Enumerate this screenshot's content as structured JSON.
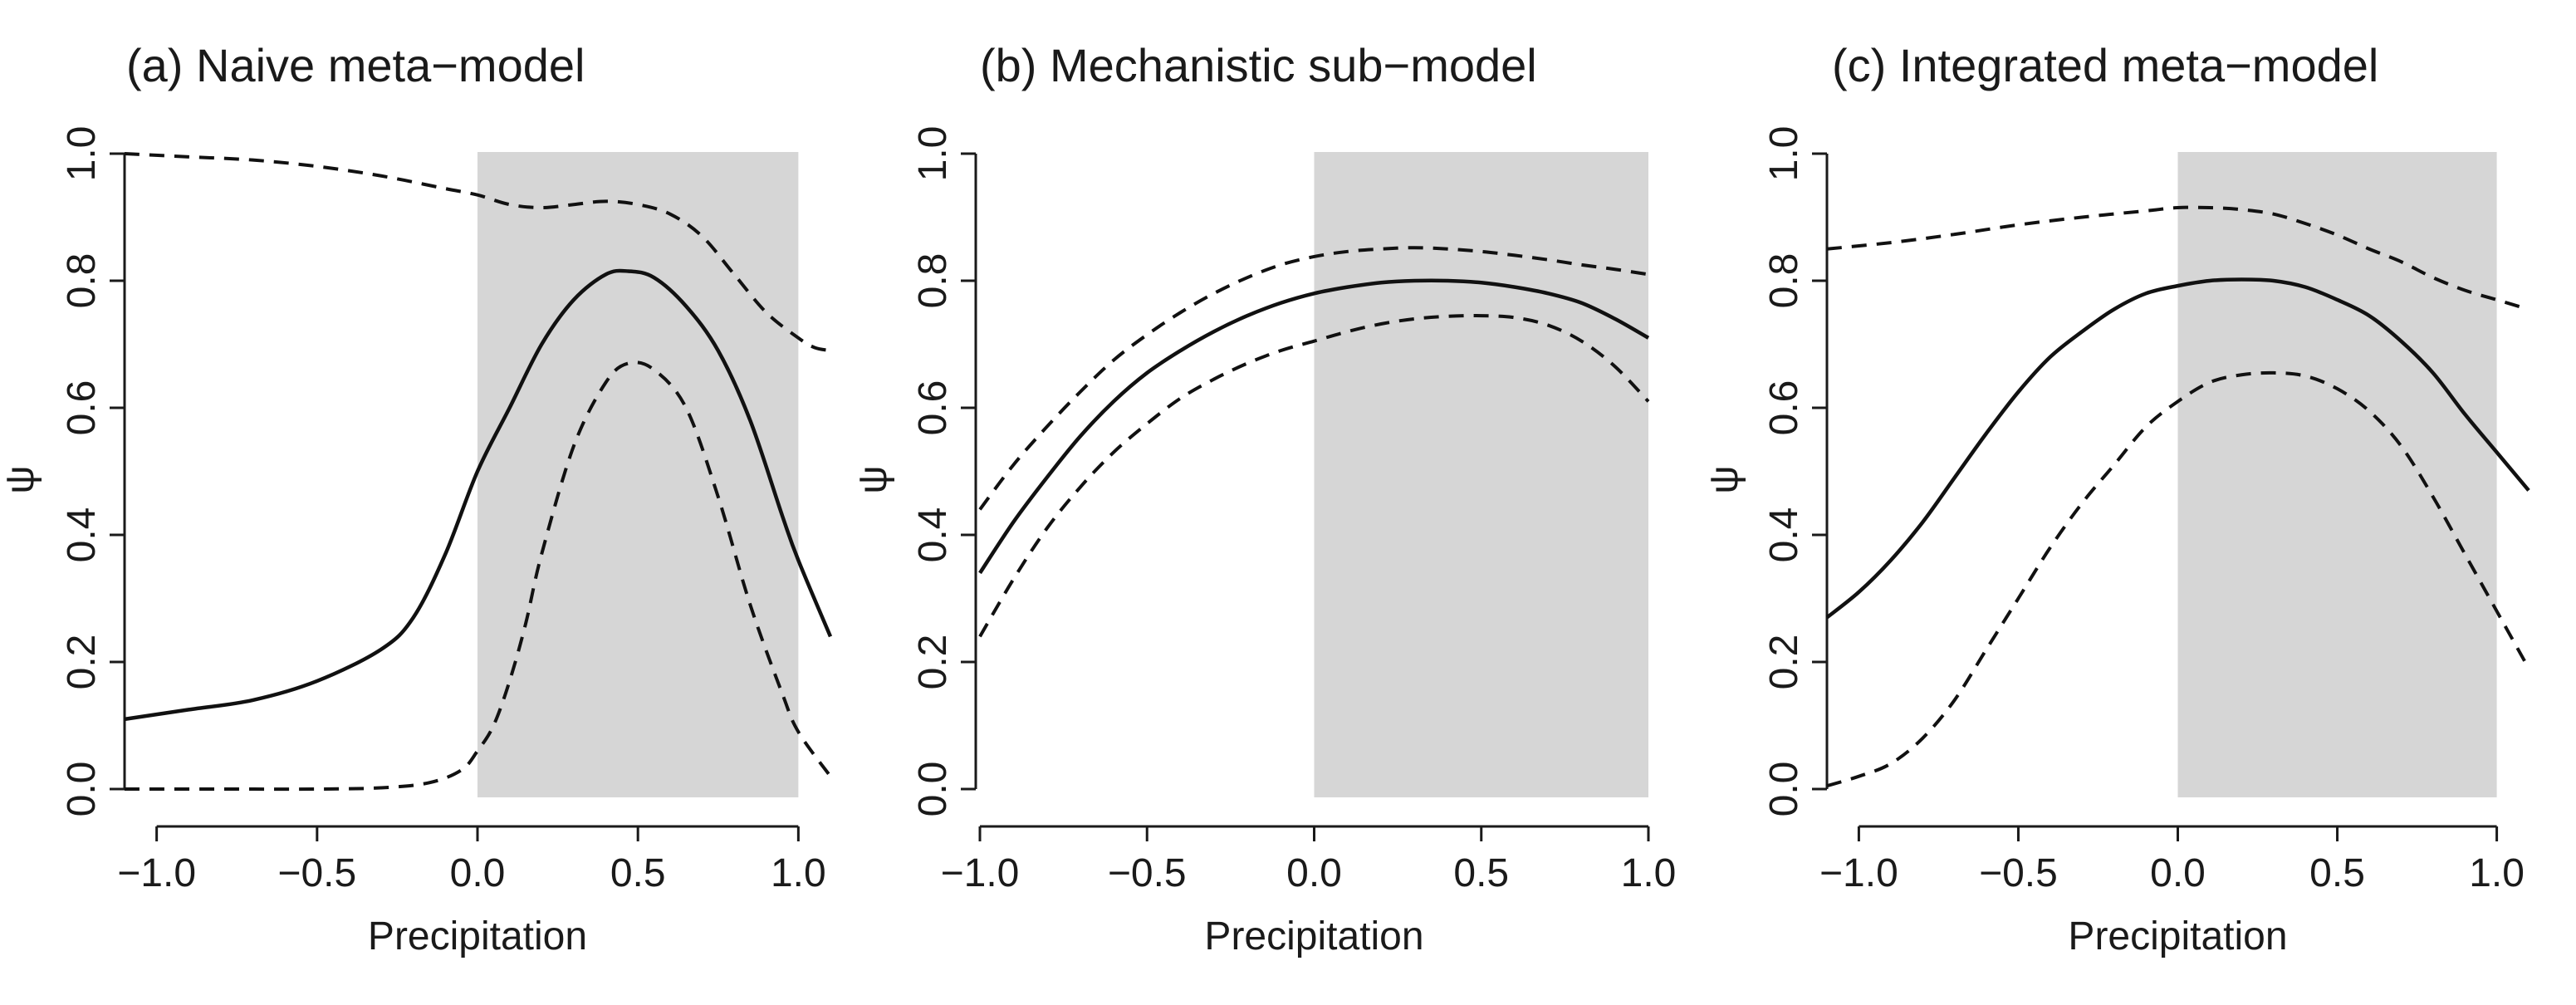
{
  "colors": {
    "shade": "#d6d6d6",
    "curve": "#111111",
    "axis": "#1a1a1a",
    "background": "#ffffff"
  },
  "chart_data": [
    {
      "type": "line",
      "title": "(a) Naive meta−model",
      "xlabel": "Precipitation",
      "ylabel": "ψ",
      "xlim": [
        -1.1,
        1.1
      ],
      "ylim": [
        0,
        1
      ],
      "xticks": [
        -1.0,
        -0.5,
        0.0,
        0.5,
        1.0
      ],
      "xtick_labels": [
        "−1.0",
        "−0.5",
        "0.0",
        "0.5",
        "1.0"
      ],
      "yticks": [
        0.0,
        0.2,
        0.4,
        0.6,
        0.8,
        1.0
      ],
      "ytick_labels": [
        "0.0",
        "0.2",
        "0.4",
        "0.6",
        "0.8",
        "1.0"
      ],
      "shaded_region": {
        "x": [
          0.0,
          1.0
        ],
        "y": [
          0.0,
          1.0
        ]
      },
      "grid": false,
      "series": [
        {
          "style": "solid",
          "x": [
            -1.1,
            -0.9,
            -0.7,
            -0.5,
            -0.3,
            -0.2,
            -0.1,
            0.0,
            0.1,
            0.2,
            0.3,
            0.4,
            0.47,
            0.55,
            0.65,
            0.75,
            0.85,
            0.95,
            1.0,
            1.1
          ],
          "y": [
            0.11,
            0.125,
            0.14,
            0.17,
            0.22,
            0.27,
            0.37,
            0.5,
            0.6,
            0.7,
            0.77,
            0.81,
            0.815,
            0.805,
            0.76,
            0.69,
            0.58,
            0.43,
            0.36,
            0.24
          ]
        },
        {
          "style": "dashed",
          "x": [
            -1.1,
            -0.9,
            -0.7,
            -0.5,
            -0.3,
            -0.1,
            0.0,
            0.1,
            0.2,
            0.3,
            0.4,
            0.5,
            0.6,
            0.7,
            0.8,
            0.9,
            1.0,
            1.05,
            1.1
          ],
          "y": [
            1.0,
            0.995,
            0.99,
            0.98,
            0.965,
            0.945,
            0.935,
            0.92,
            0.915,
            0.92,
            0.925,
            0.92,
            0.905,
            0.87,
            0.81,
            0.75,
            0.71,
            0.695,
            0.69
          ]
        },
        {
          "style": "dashed",
          "x": [
            -1.1,
            -0.8,
            -0.5,
            -0.3,
            -0.15,
            -0.05,
            0.0,
            0.05,
            0.1,
            0.15,
            0.2,
            0.3,
            0.4,
            0.47,
            0.55,
            0.65,
            0.75,
            0.85,
            0.95,
            1.0,
            1.1
          ],
          "y": [
            0.0,
            0.0,
            0.0,
            0.002,
            0.01,
            0.03,
            0.06,
            0.1,
            0.17,
            0.26,
            0.37,
            0.54,
            0.64,
            0.67,
            0.66,
            0.6,
            0.46,
            0.29,
            0.15,
            0.09,
            0.02
          ]
        }
      ]
    },
    {
      "type": "line",
      "title": "(b) Mechanistic sub−model",
      "xlabel": "Precipitation",
      "ylabel": "ψ",
      "xlim": [
        -1.0,
        1.0
      ],
      "ylim": [
        0,
        1
      ],
      "xticks": [
        -1.0,
        -0.5,
        0.0,
        0.5,
        1.0
      ],
      "xtick_labels": [
        "−1.0",
        "−0.5",
        "0.0",
        "0.5",
        "1.0"
      ],
      "yticks": [
        0.0,
        0.2,
        0.4,
        0.6,
        0.8,
        1.0
      ],
      "ytick_labels": [
        "0.0",
        "0.2",
        "0.4",
        "0.6",
        "0.8",
        "1.0"
      ],
      "shaded_region": {
        "x": [
          0.0,
          1.0
        ],
        "y": [
          0.0,
          1.0
        ]
      },
      "grid": false,
      "series": [
        {
          "style": "solid",
          "x": [
            -1.0,
            -0.9,
            -0.8,
            -0.7,
            -0.6,
            -0.5,
            -0.4,
            -0.3,
            -0.2,
            -0.1,
            0.0,
            0.1,
            0.2,
            0.3,
            0.4,
            0.5,
            0.6,
            0.7,
            0.8,
            0.9,
            1.0
          ],
          "y": [
            0.34,
            0.42,
            0.49,
            0.555,
            0.61,
            0.655,
            0.69,
            0.72,
            0.745,
            0.765,
            0.78,
            0.79,
            0.797,
            0.8,
            0.8,
            0.797,
            0.79,
            0.78,
            0.765,
            0.74,
            0.71
          ]
        },
        {
          "style": "dashed",
          "x": [
            -1.0,
            -0.9,
            -0.8,
            -0.7,
            -0.6,
            -0.5,
            -0.4,
            -0.3,
            -0.2,
            -0.1,
            0.0,
            0.1,
            0.2,
            0.3,
            0.4,
            0.5,
            0.6,
            0.7,
            0.8,
            0.9,
            1.0
          ],
          "y": [
            0.44,
            0.51,
            0.57,
            0.625,
            0.675,
            0.715,
            0.75,
            0.78,
            0.805,
            0.825,
            0.838,
            0.846,
            0.85,
            0.852,
            0.85,
            0.846,
            0.84,
            0.833,
            0.825,
            0.818,
            0.81
          ]
        },
        {
          "style": "dashed",
          "x": [
            -1.0,
            -0.9,
            -0.8,
            -0.7,
            -0.6,
            -0.5,
            -0.4,
            -0.3,
            -0.2,
            -0.1,
            0.0,
            0.1,
            0.2,
            0.3,
            0.4,
            0.5,
            0.6,
            0.7,
            0.8,
            0.9,
            1.0
          ],
          "y": [
            0.24,
            0.33,
            0.41,
            0.475,
            0.53,
            0.575,
            0.615,
            0.645,
            0.67,
            0.69,
            0.705,
            0.72,
            0.732,
            0.74,
            0.744,
            0.745,
            0.742,
            0.73,
            0.705,
            0.665,
            0.61
          ]
        }
      ]
    },
    {
      "type": "line",
      "title": "(c) Integrated meta−model",
      "xlabel": "Precipitation",
      "ylabel": "ψ",
      "xlim": [
        -1.1,
        1.1
      ],
      "ylim": [
        0,
        1
      ],
      "xticks": [
        -1.0,
        -0.5,
        0.0,
        0.5,
        1.0
      ],
      "xtick_labels": [
        "−1.0",
        "−0.5",
        "0.0",
        "0.5",
        "1.0"
      ],
      "yticks": [
        0.0,
        0.2,
        0.4,
        0.6,
        0.8,
        1.0
      ],
      "ytick_labels": [
        "0.0",
        "0.2",
        "0.4",
        "0.6",
        "0.8",
        "1.0"
      ],
      "shaded_region": {
        "x": [
          0.0,
          1.0
        ],
        "y": [
          0.0,
          1.0
        ]
      },
      "grid": false,
      "series": [
        {
          "style": "solid",
          "x": [
            -1.1,
            -1.0,
            -0.9,
            -0.8,
            -0.7,
            -0.6,
            -0.5,
            -0.4,
            -0.3,
            -0.2,
            -0.1,
            0.0,
            0.1,
            0.2,
            0.3,
            0.4,
            0.5,
            0.6,
            0.7,
            0.8,
            0.9,
            1.0,
            1.1
          ],
          "y": [
            0.27,
            0.31,
            0.36,
            0.42,
            0.49,
            0.56,
            0.625,
            0.68,
            0.72,
            0.755,
            0.78,
            0.792,
            0.8,
            0.802,
            0.8,
            0.79,
            0.77,
            0.745,
            0.705,
            0.655,
            0.59,
            0.53,
            0.47
          ]
        },
        {
          "style": "dashed",
          "x": [
            -1.1,
            -0.9,
            -0.7,
            -0.5,
            -0.3,
            -0.1,
            0.0,
            0.1,
            0.2,
            0.3,
            0.4,
            0.5,
            0.6,
            0.7,
            0.8,
            0.9,
            1.0,
            1.1
          ],
          "y": [
            0.85,
            0.86,
            0.873,
            0.888,
            0.9,
            0.91,
            0.915,
            0.915,
            0.912,
            0.905,
            0.89,
            0.872,
            0.85,
            0.83,
            0.805,
            0.785,
            0.77,
            0.755
          ]
        },
        {
          "style": "dashed",
          "x": [
            -1.1,
            -1.0,
            -0.9,
            -0.8,
            -0.7,
            -0.6,
            -0.5,
            -0.4,
            -0.3,
            -0.2,
            -0.1,
            0.0,
            0.1,
            0.2,
            0.3,
            0.4,
            0.5,
            0.6,
            0.7,
            0.8,
            0.9,
            1.0,
            1.1
          ],
          "y": [
            0.005,
            0.02,
            0.04,
            0.08,
            0.14,
            0.22,
            0.3,
            0.38,
            0.45,
            0.51,
            0.57,
            0.61,
            0.64,
            0.652,
            0.655,
            0.65,
            0.63,
            0.595,
            0.54,
            0.46,
            0.37,
            0.28,
            0.19
          ]
        }
      ]
    }
  ]
}
